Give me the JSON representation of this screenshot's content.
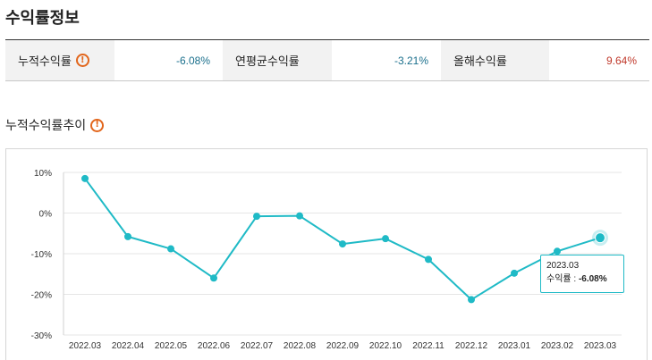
{
  "section": {
    "title": "수익률정보"
  },
  "summary": {
    "cumulative": {
      "label": "누적수익률",
      "value": "-6.08%",
      "color": "#1a6f8c"
    },
    "annualized": {
      "label": "연평균수익률",
      "value": "-3.21%",
      "color": "#1a6f8c"
    },
    "ytd": {
      "label": "올해수익률",
      "value": "9.64%",
      "color": "#c0392b"
    }
  },
  "trend": {
    "title": "누적수익률추이"
  },
  "icons": {
    "warning": "exclamation-circle-icon",
    "warning_glyph": "!",
    "warning_color": "#e2661c"
  },
  "tooltip": {
    "date": "2023.03",
    "label": "수익률 :",
    "value": "-6.08%"
  },
  "chart_data": {
    "type": "line",
    "categories": [
      "2022.03",
      "2022.04",
      "2022.05",
      "2022.06",
      "2022.07",
      "2022.08",
      "2022.09",
      "2022.10",
      "2022.11",
      "2022.12",
      "2023.01",
      "2023.02",
      "2023.03"
    ],
    "series": [
      {
        "values": [
          8.5,
          -5.8,
          -8.8,
          -16.0,
          -0.8,
          -0.7,
          -7.6,
          -6.3,
          -11.4,
          -21.3,
          -14.8,
          -9.4,
          -6.08
        ]
      }
    ],
    "ylim": [
      -30,
      10
    ],
    "yticks": [
      10,
      0,
      -10,
      -20,
      -30
    ],
    "ytick_labels": [
      "10%",
      "0%",
      "-10%",
      "-20%",
      "-30%"
    ],
    "grid": true,
    "line_color": "#1fbac6",
    "highlight_index": 12
  }
}
